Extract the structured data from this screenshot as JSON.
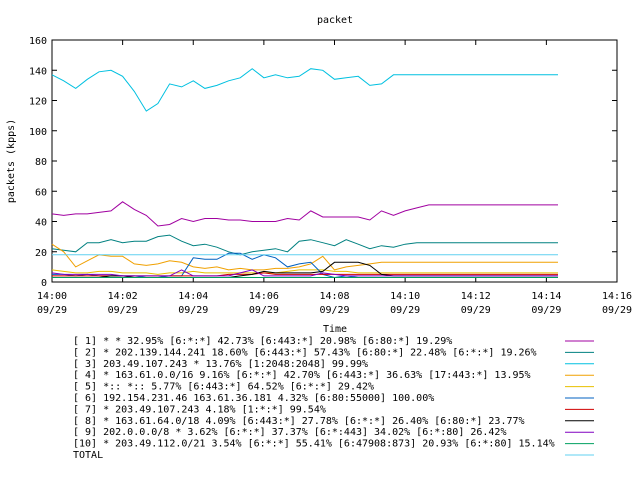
{
  "chart_data": {
    "type": "line",
    "title": "packet",
    "xlabel": "Time",
    "ylabel": "packets (kpps)",
    "ylim": [
      0,
      160
    ],
    "xlim": [
      "14:00",
      "14:16"
    ],
    "grid": false,
    "legend_position": "bottom",
    "y_ticks": [
      0,
      20,
      40,
      60,
      80,
      100,
      120,
      140,
      160
    ],
    "x_ticks": [
      {
        "x": 0,
        "time": "14:00",
        "date": "09/29"
      },
      {
        "x": 2,
        "time": "14:02",
        "date": "09/29"
      },
      {
        "x": 4,
        "time": "14:04",
        "date": "09/29"
      },
      {
        "x": 6,
        "time": "14:06",
        "date": "09/29"
      },
      {
        "x": 8,
        "time": "14:08",
        "date": "09/29"
      },
      {
        "x": 10,
        "time": "14:10",
        "date": "09/29"
      },
      {
        "x": 12,
        "time": "14:12",
        "date": "09/29"
      },
      {
        "x": 14,
        "time": "14:14",
        "date": "09/29"
      },
      {
        "x": 16,
        "time": "14:16",
        "date": "09/29"
      }
    ],
    "x": [
      0.0,
      0.33,
      0.67,
      1.0,
      1.33,
      1.67,
      2.0,
      2.33,
      2.67,
      3.0,
      3.33,
      3.67,
      4.0,
      4.33,
      4.67,
      5.0,
      5.33,
      5.67,
      6.0,
      6.33,
      6.67,
      7.0,
      7.33,
      7.67,
      8.0,
      8.33,
      8.67,
      9.0,
      9.33,
      9.67,
      10.0,
      10.33,
      10.67,
      11.0,
      11.33,
      11.67,
      12.0,
      12.33,
      12.67,
      13.0,
      13.33,
      13.67,
      14.0,
      14.33
    ],
    "series": [
      {
        "name": "[ 1] * * 32.95%  [6:*:*] 42.73% [6:443:*] 20.98% [6:80:*] 19.29%",
        "color": "#a000a0",
        "values": [
          45,
          44,
          45,
          45,
          46,
          47,
          53,
          48,
          44,
          37,
          38,
          42,
          40,
          42,
          42,
          41,
          41,
          40,
          40,
          40,
          42,
          41,
          47,
          43,
          43,
          43,
          43,
          41,
          47,
          44,
          47,
          49,
          51,
          51,
          51,
          51,
          51,
          51,
          51,
          51,
          51,
          51,
          51,
          51
        ]
      },
      {
        "name": "[ 2] * 202.139.144.241 18.60%  [6:443:*] 57.43% [6:80:*] 22.48% [6:*:*] 19.26%",
        "color": "#008080",
        "values": [
          22,
          21,
          20,
          26,
          26,
          28,
          26,
          27,
          27,
          30,
          31,
          27,
          24,
          25,
          23,
          20,
          18,
          20,
          21,
          22,
          20,
          27,
          28,
          26,
          24,
          28,
          25,
          22,
          24,
          23,
          25,
          26,
          26,
          26,
          26,
          26,
          26,
          26,
          26,
          26,
          26,
          26,
          26,
          26
        ]
      },
      {
        "name": "[ 3] 203.49.107.243 * 13.76%  [1:2048:2048] 99.99%",
        "color": "#00c0e0",
        "values": [
          137,
          133,
          128,
          134,
          139,
          140,
          136,
          126,
          113,
          118,
          131,
          129,
          133,
          128,
          130,
          133,
          135,
          141,
          135,
          137,
          135,
          136,
          141,
          140,
          134,
          135,
          136,
          130,
          131,
          137,
          137,
          137,
          137,
          137,
          137,
          137,
          137,
          137,
          137,
          137,
          137,
          137,
          137,
          137
        ]
      },
      {
        "name": "[ 4] * 163.61.0.0/16 9.16%  [6:*:*] 42.70% [6:443:*] 36.63% [17:443:*] 13.95%",
        "color": "#f0a000",
        "values": [
          25,
          20,
          10,
          14,
          18,
          17,
          17,
          12,
          11,
          12,
          14,
          13,
          10,
          9,
          10,
          8,
          9,
          8,
          8,
          9,
          9,
          10,
          12,
          17,
          8,
          10,
          11,
          12,
          13,
          13,
          13,
          13,
          13,
          13,
          13,
          13,
          13,
          13,
          13,
          13,
          13,
          13,
          13,
          13
        ]
      },
      {
        "name": "[ 5] *:: *:: 5.77%  [6:443:*] 64.52% [6:*:*] 29.42%",
        "color": "#e8c000",
        "values": [
          8,
          7,
          6,
          6,
          7,
          7,
          6,
          6,
          6,
          5,
          6,
          6,
          7,
          6,
          6,
          6,
          6,
          6,
          6,
          6,
          7,
          8,
          8,
          8,
          7,
          7,
          6,
          6,
          6,
          6,
          6,
          6,
          6,
          6,
          6,
          6,
          6,
          6,
          6,
          6,
          6,
          6,
          6,
          6
        ]
      },
      {
        "name": "[ 6] 192.154.231.46 163.61.36.181 4.32%  [6:80:55000] 100.00%",
        "color": "#0060c0",
        "values": [
          5,
          5,
          4,
          5,
          4,
          4,
          4,
          4,
          3,
          3,
          4,
          4,
          16,
          15,
          15,
          19,
          19,
          15,
          18,
          16,
          10,
          12,
          13,
          5,
          3,
          4,
          3,
          3,
          3,
          3,
          3,
          3,
          3,
          3,
          3,
          3,
          3,
          3,
          3,
          3,
          3,
          3,
          3,
          3
        ]
      },
      {
        "name": "[ 7] * 203.49.107.243 4.18%  [1:*:*] 99.54%",
        "color": "#d00000",
        "values": [
          4,
          4,
          4,
          4,
          4,
          4,
          4,
          4,
          4,
          4,
          4,
          4,
          4,
          4,
          4,
          5,
          5,
          5,
          6,
          5,
          5,
          5,
          5,
          5,
          5,
          5,
          5,
          5,
          5,
          5,
          5,
          5,
          5,
          5,
          5,
          5,
          5,
          5,
          5,
          5,
          5,
          5,
          5,
          5
        ]
      },
      {
        "name": "[ 8] * 163.61.64.0/18 4.09%  [6:443:*] 27.78% [6:*:*] 26.40% [6:80:*] 23.77%",
        "color": "#000000",
        "values": [
          3,
          3,
          3,
          3,
          3,
          4,
          4,
          3,
          3,
          3,
          3,
          3,
          3,
          3,
          3,
          3,
          4,
          5,
          7,
          6,
          6,
          6,
          6,
          7,
          13,
          13,
          13,
          11,
          5,
          4,
          4,
          4,
          4,
          4,
          4,
          4,
          4,
          4,
          4,
          4,
          4,
          4,
          4,
          4
        ]
      },
      {
        "name": "[ 9] 202.0.0.0/8 * 3.62%  [6:*:*] 37.37% [6:*:443] 34.02% [6:*:80] 26.42%",
        "color": "#8000c0",
        "values": [
          6,
          5,
          5,
          5,
          5,
          5,
          4,
          4,
          4,
          4,
          4,
          8,
          4,
          4,
          4,
          4,
          6,
          8,
          4,
          4,
          4,
          4,
          4,
          6,
          5,
          4,
          4,
          4,
          4,
          4,
          4,
          4,
          4,
          4,
          4,
          4,
          4,
          4,
          4,
          4,
          4,
          4,
          4,
          4
        ]
      },
      {
        "name": "[10] * 203.49.112.0/21 3.54%  [6:*:*] 55.41% [6:47908:873] 20.93% [6:*:80] 15.14%",
        "color": "#00a060",
        "values": [
          3,
          3,
          3,
          3,
          3,
          3,
          3,
          3,
          3,
          3,
          3,
          3,
          3,
          3,
          3,
          3,
          3,
          3,
          3,
          3,
          3,
          3,
          3,
          3,
          3,
          3,
          3,
          3,
          3,
          3,
          3,
          3,
          3,
          3,
          3,
          3,
          3,
          3,
          3,
          3,
          3,
          3,
          3,
          3
        ]
      },
      {
        "name": "TOTAL",
        "color": "#60d0f0",
        "values": [
          18,
          18,
          18,
          18,
          18,
          18,
          18,
          18,
          18,
          18,
          18,
          18,
          18,
          18,
          18,
          18,
          18,
          18,
          18,
          18,
          18,
          18,
          18,
          18,
          18,
          18,
          18,
          18,
          18,
          18,
          18,
          18,
          18,
          18,
          18,
          18,
          18,
          18,
          18,
          18,
          18,
          18,
          18,
          18
        ]
      }
    ]
  }
}
